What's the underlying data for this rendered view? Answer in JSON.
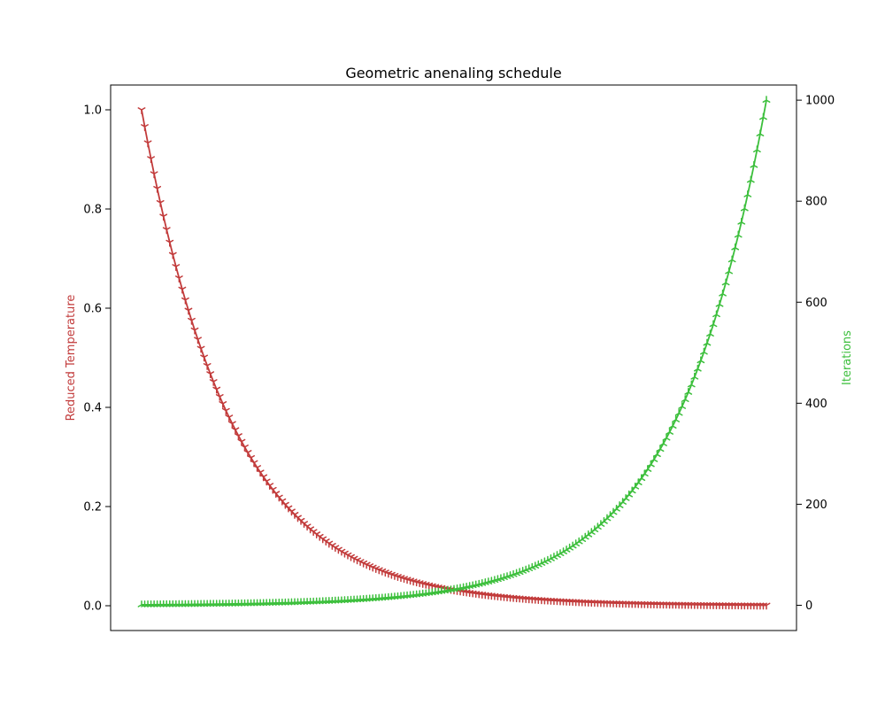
{
  "chart_data": {
    "type": "line",
    "title": "Geometric anenaling schedule",
    "xlabel": "",
    "x_ticks_visible": false,
    "x_label_visible": false,
    "grid": false,
    "legend": "none",
    "x": {
      "start": 0,
      "end": 200,
      "samples": 201
    },
    "left_axis": {
      "label": "Reduced Temperature",
      "color": "#c23b3b",
      "ylim": [
        -0.05,
        1.05
      ],
      "ticks": [
        "0.0",
        "0.2",
        "0.4",
        "0.6",
        "0.8",
        "1.0"
      ]
    },
    "right_axis": {
      "label": "Iterations",
      "color": "#3cbf3c",
      "ylim": [
        -50,
        1030
      ],
      "ticks": [
        "0",
        "200",
        "400",
        "600",
        "800",
        "1000"
      ]
    },
    "series": [
      {
        "axis": "left",
        "color": "#c23b3b",
        "marker": "tri-down",
        "start": 1.0,
        "end": 0.001,
        "shape": "geometric decay"
      },
      {
        "axis": "right",
        "color": "#3cbf3c",
        "marker": "tri-up",
        "start": 1,
        "end": 1000,
        "shape": "geometric growth"
      }
    ]
  }
}
